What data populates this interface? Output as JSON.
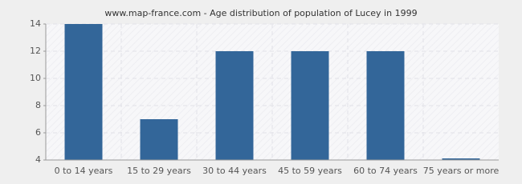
{
  "chart_data": {
    "type": "bar",
    "title": "www.map-france.com - Age distribution of population of Lucey in 1999",
    "categories": [
      "0 to 14 years",
      "15 to 29 years",
      "30 to 44 years",
      "45 to 59 years",
      "60 to 74 years",
      "75 years or more"
    ],
    "values": [
      14,
      7,
      12,
      12,
      12,
      4
    ],
    "color": "#336699",
    "ylim": [
      4,
      14
    ],
    "yticks": [
      4,
      6,
      8,
      10,
      12,
      14
    ],
    "grid": true
  }
}
